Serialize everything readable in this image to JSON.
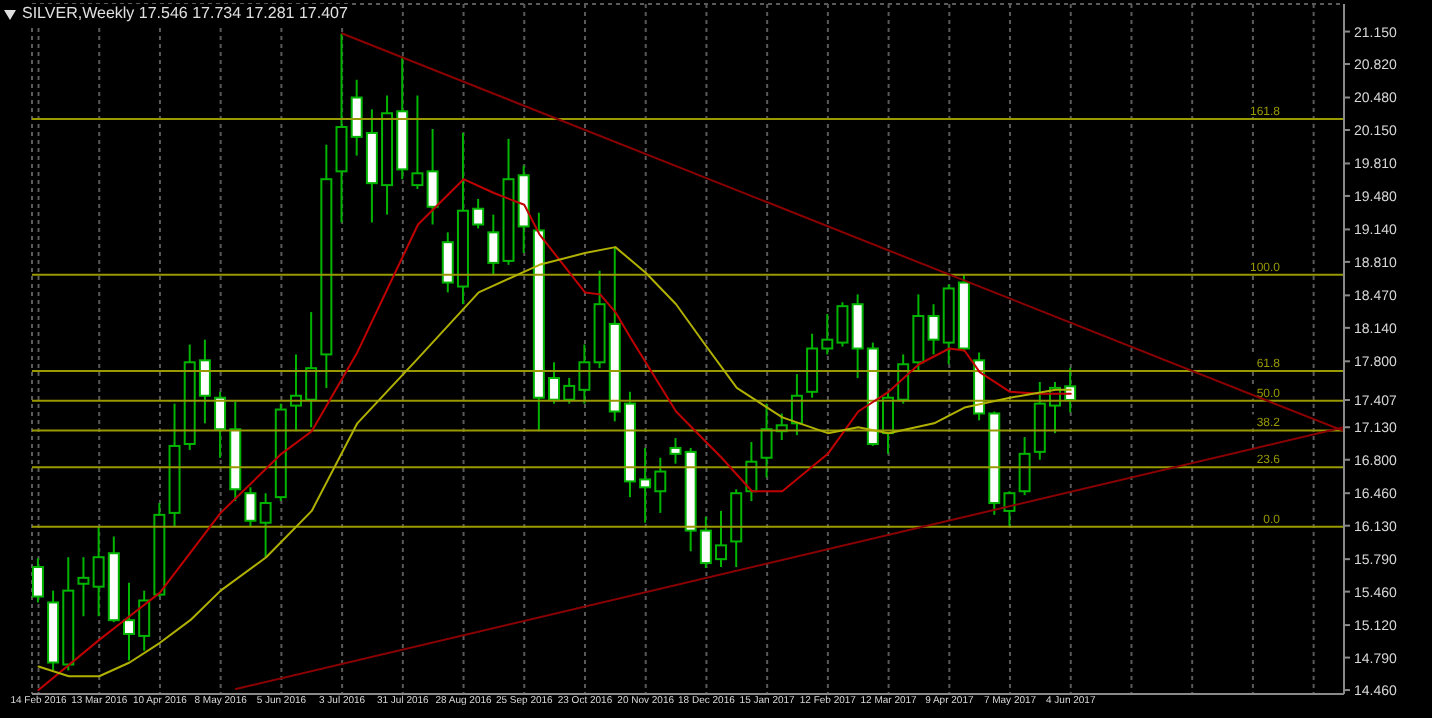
{
  "chart_data": {
    "type": "candlestick",
    "title": "SILVER,Weekly 17.546 17.734 17.281 17.407",
    "x": [
      "2016-02-14",
      "2016-02-21",
      "2016-02-28",
      "2016-03-06",
      "2016-03-13",
      "2016-03-20",
      "2016-03-27",
      "2016-04-03",
      "2016-04-10",
      "2016-04-17",
      "2016-04-24",
      "2016-05-01",
      "2016-05-08",
      "2016-05-15",
      "2016-05-22",
      "2016-05-29",
      "2016-06-05",
      "2016-06-12",
      "2016-06-19",
      "2016-06-26",
      "2016-07-03",
      "2016-07-10",
      "2016-07-17",
      "2016-07-24",
      "2016-07-31",
      "2016-08-07",
      "2016-08-14",
      "2016-08-21",
      "2016-08-28",
      "2016-09-04",
      "2016-09-11",
      "2016-09-18",
      "2016-09-25",
      "2016-10-02",
      "2016-10-09",
      "2016-10-16",
      "2016-10-23",
      "2016-10-30",
      "2016-11-06",
      "2016-11-13",
      "2016-11-20",
      "2016-11-27",
      "2016-12-04",
      "2016-12-11",
      "2016-12-18",
      "2016-12-25",
      "2017-01-01",
      "2017-01-08",
      "2017-01-15",
      "2017-01-22",
      "2017-01-29",
      "2017-02-05",
      "2017-02-12",
      "2017-02-19",
      "2017-02-26",
      "2017-03-05",
      "2017-03-12",
      "2017-03-19",
      "2017-03-26",
      "2017-04-02",
      "2017-04-09",
      "2017-04-16",
      "2017-04-23",
      "2017-04-30",
      "2017-05-07",
      "2017-05-14",
      "2017-05-21",
      "2017-05-28",
      "2017-06-04"
    ],
    "ohlc": [
      [
        15.71,
        15.8,
        15.35,
        15.41
      ],
      [
        15.35,
        15.47,
        14.66,
        14.74
      ],
      [
        14.72,
        15.81,
        14.66,
        15.47
      ],
      [
        15.54,
        15.81,
        15.21,
        15.6
      ],
      [
        15.51,
        16.12,
        15.21,
        15.81
      ],
      [
        15.85,
        16.02,
        15.15,
        15.17
      ],
      [
        15.17,
        15.55,
        14.76,
        15.03
      ],
      [
        15.01,
        15.47,
        14.86,
        15.37
      ],
      [
        15.43,
        16.36,
        15.41,
        16.24
      ],
      [
        16.26,
        17.37,
        16.12,
        16.94
      ],
      [
        16.96,
        17.97,
        16.9,
        17.79
      ],
      [
        17.81,
        18.02,
        17.17,
        17.45
      ],
      [
        17.43,
        17.49,
        16.82,
        17.11
      ],
      [
        17.11,
        17.39,
        16.38,
        16.5
      ],
      [
        16.46,
        16.52,
        16.12,
        16.18
      ],
      [
        16.16,
        16.46,
        15.81,
        16.36
      ],
      [
        16.42,
        17.37,
        16.38,
        17.31
      ],
      [
        17.35,
        17.87,
        17.09,
        17.45
      ],
      [
        17.41,
        18.3,
        17.13,
        17.73
      ],
      [
        17.87,
        20.0,
        17.53,
        19.65
      ],
      [
        19.73,
        21.13,
        19.21,
        20.18
      ],
      [
        20.48,
        20.66,
        19.89,
        20.08
      ],
      [
        20.12,
        20.36,
        19.21,
        19.61
      ],
      [
        19.59,
        20.5,
        19.29,
        20.32
      ],
      [
        20.34,
        20.9,
        19.65,
        19.75
      ],
      [
        19.59,
        20.5,
        19.55,
        19.71
      ],
      [
        19.73,
        20.16,
        19.19,
        19.37
      ],
      [
        19.01,
        19.11,
        18.5,
        18.6
      ],
      [
        18.56,
        20.12,
        18.38,
        19.33
      ],
      [
        19.35,
        19.45,
        19.15,
        19.19
      ],
      [
        19.11,
        19.29,
        18.68,
        18.8
      ],
      [
        18.82,
        20.06,
        18.78,
        19.65
      ],
      [
        19.69,
        19.79,
        18.9,
        19.17
      ],
      [
        19.13,
        19.31,
        17.09,
        17.43
      ],
      [
        17.63,
        17.79,
        17.37,
        17.41
      ],
      [
        17.41,
        17.63,
        17.37,
        17.55
      ],
      [
        17.51,
        17.97,
        17.37,
        17.79
      ],
      [
        17.79,
        18.72,
        17.73,
        18.38
      ],
      [
        18.18,
        18.96,
        17.19,
        17.29
      ],
      [
        17.37,
        17.49,
        16.42,
        16.58
      ],
      [
        16.6,
        16.92,
        16.16,
        16.52
      ],
      [
        16.48,
        16.82,
        16.26,
        16.68
      ],
      [
        16.92,
        17.02,
        16.76,
        16.86
      ],
      [
        16.88,
        16.92,
        15.87,
        16.08
      ],
      [
        16.08,
        16.22,
        15.7,
        15.75
      ],
      [
        15.79,
        16.28,
        15.71,
        15.93
      ],
      [
        15.97,
        16.5,
        15.71,
        16.46
      ],
      [
        16.48,
        16.98,
        16.38,
        16.78
      ],
      [
        16.82,
        17.37,
        16.62,
        17.11
      ],
      [
        17.09,
        17.27,
        17.0,
        17.15
      ],
      [
        17.17,
        17.67,
        17.05,
        17.45
      ],
      [
        17.49,
        18.08,
        17.43,
        17.93
      ],
      [
        17.93,
        18.28,
        17.87,
        18.02
      ],
      [
        17.99,
        18.4,
        17.95,
        18.36
      ],
      [
        18.38,
        18.48,
        17.63,
        17.93
      ],
      [
        17.93,
        17.99,
        16.94,
        16.96
      ],
      [
        17.07,
        17.49,
        16.86,
        17.43
      ],
      [
        17.41,
        17.87,
        17.37,
        17.77
      ],
      [
        17.79,
        18.48,
        17.7,
        18.26
      ],
      [
        18.26,
        18.38,
        17.87,
        18.02
      ],
      [
        17.99,
        18.58,
        17.77,
        18.54
      ],
      [
        18.6,
        18.68,
        17.9,
        17.93
      ],
      [
        17.81,
        17.89,
        17.2,
        17.27
      ],
      [
        17.27,
        17.29,
        16.24,
        16.36
      ],
      [
        16.28,
        16.48,
        16.12,
        16.46
      ],
      [
        16.48,
        17.03,
        16.44,
        16.86
      ],
      [
        16.88,
        17.59,
        16.8,
        17.37
      ],
      [
        17.35,
        17.59,
        17.07,
        17.53
      ],
      [
        17.546,
        17.734,
        17.281,
        17.407
      ]
    ],
    "series": [
      {
        "type": "line",
        "color": "#c00000",
        "x": [
          "2016-02-14",
          "2016-03-13",
          "2016-03-27",
          "2016-04-10",
          "2016-05-08",
          "2016-06-05",
          "2016-06-19",
          "2016-07-10",
          "2016-08-07",
          "2016-08-28",
          "2016-09-11",
          "2016-09-25",
          "2016-10-02",
          "2016-10-23",
          "2016-10-30",
          "2016-11-06",
          "2016-11-13",
          "2016-12-04",
          "2016-12-25",
          "2017-01-08",
          "2017-01-22",
          "2017-02-12",
          "2017-02-26",
          "2017-03-12",
          "2017-03-26",
          "2017-04-09",
          "2017-04-16",
          "2017-04-23",
          "2017-05-07",
          "2017-05-21",
          "2017-06-04"
        ],
        "values": [
          14.46,
          14.97,
          15.21,
          15.45,
          16.26,
          16.86,
          17.09,
          17.89,
          19.19,
          19.65,
          19.51,
          19.39,
          19.09,
          18.5,
          18.48,
          18.3,
          18.04,
          17.29,
          16.82,
          16.48,
          16.48,
          16.86,
          17.29,
          17.49,
          17.77,
          17.93,
          17.91,
          17.69,
          17.49,
          17.47,
          17.47
        ]
      },
      {
        "type": "line",
        "color": "#b0b000",
        "x": [
          "2016-02-14",
          "2016-02-28",
          "2016-03-13",
          "2016-03-27",
          "2016-04-10",
          "2016-04-24",
          "2016-05-08",
          "2016-05-29",
          "2016-06-19",
          "2016-07-10",
          "2016-08-07",
          "2016-09-04",
          "2016-10-02",
          "2016-10-23",
          "2016-11-06",
          "2016-11-20",
          "2016-12-04",
          "2016-12-18",
          "2017-01-01",
          "2017-01-22",
          "2017-02-12",
          "2017-02-26",
          "2017-03-12",
          "2017-04-02",
          "2017-04-16",
          "2017-05-07",
          "2017-05-28",
          "2017-06-04"
        ],
        "values": [
          14.7,
          14.6,
          14.6,
          14.74,
          14.94,
          15.17,
          15.47,
          15.81,
          16.28,
          17.17,
          17.83,
          18.5,
          18.78,
          18.9,
          18.96,
          18.7,
          18.38,
          17.95,
          17.53,
          17.23,
          17.07,
          17.13,
          17.07,
          17.17,
          17.33,
          17.43,
          17.51,
          17.51
        ]
      },
      {
        "type": "line",
        "color": "#8b0000",
        "x": [
          "2016-07-03",
          "2017-10-08"
        ],
        "values": [
          21.13,
          17.09
        ]
      },
      {
        "type": "line",
        "color": "#8b0000",
        "x": [
          "2016-05-15",
          "2017-10-08"
        ],
        "values": [
          14.47,
          17.13
        ]
      }
    ],
    "ref_lines": [
      {
        "axis": "y2",
        "value": 161.8,
        "label": "161.8",
        "color": "#999900"
      },
      {
        "axis": "y2",
        "value": 100.0,
        "label": "100.0",
        "color": "#999900"
      },
      {
        "axis": "y2",
        "value": 61.8,
        "label": "61.8",
        "color": "#999900"
      },
      {
        "axis": "y2",
        "value": 50.0,
        "label": "50.0",
        "color": "#999900"
      },
      {
        "axis": "y2",
        "value": 38.2,
        "label": "38.2",
        "color": "#999900"
      },
      {
        "axis": "y2",
        "value": 23.6,
        "label": "23.6",
        "color": "#999900"
      },
      {
        "axis": "y2",
        "value": 0.0,
        "label": "0.0",
        "color": "#999900"
      }
    ],
    "y2lim": [
      -66.4,
      207.4
    ],
    "xlim": [
      "2016-02-11",
      "2017-10-08"
    ],
    "xticks": [
      {
        "value": "2016-02-14",
        "label": "14 Feb 2016"
      },
      {
        "value": "2016-03-13",
        "label": "13 Mar 2016"
      },
      {
        "value": "2016-04-10",
        "label": "10 Apr 2016"
      },
      {
        "value": "2016-05-08",
        "label": "8 May 2016"
      },
      {
        "value": "2016-06-05",
        "label": "5 Jun 2016"
      },
      {
        "value": "2016-07-03",
        "label": "3 Jul 2016"
      },
      {
        "value": "2016-07-31",
        "label": "31 Jul 2016"
      },
      {
        "value": "2016-08-28",
        "label": "28 Aug 2016"
      },
      {
        "value": "2016-09-25",
        "label": "25 Sep 2016"
      },
      {
        "value": "2016-10-23",
        "label": "23 Oct 2016"
      },
      {
        "value": "2016-11-20",
        "label": "20 Nov 2016"
      },
      {
        "value": "2016-12-18",
        "label": "18 Dec 2016"
      },
      {
        "value": "2017-01-15",
        "label": "15 Jan 2017"
      },
      {
        "value": "2017-02-12",
        "label": "12 Feb 2017"
      },
      {
        "value": "2017-03-12",
        "label": "12 Mar 2017"
      },
      {
        "value": "2017-04-09",
        "label": "9 Apr 2017"
      },
      {
        "value": "2017-05-07",
        "label": "7 May 2017"
      },
      {
        "value": "2017-06-04",
        "label": "4 Jun 2017"
      },
      {
        "value": "2017-07-02",
        "label": null
      },
      {
        "value": "2017-07-30",
        "label": null
      },
      {
        "value": "2017-08-27",
        "label": null
      },
      {
        "value": "2017-09-24",
        "label": null
      }
    ],
    "ylim": [
      14.42,
      21.43
    ],
    "yticks": [
      {
        "value": 14.46,
        "label": "14.460"
      },
      {
        "value": 14.79,
        "label": "14.790"
      },
      {
        "value": 15.12,
        "label": "15.120"
      },
      {
        "value": 15.46,
        "label": "15.460"
      },
      {
        "value": 15.79,
        "label": "15.790"
      },
      {
        "value": 16.13,
        "label": "16.130"
      },
      {
        "value": 16.46,
        "label": "16.460"
      },
      {
        "value": 16.8,
        "label": "16.800"
      },
      {
        "value": 17.13,
        "label": "17.130"
      },
      {
        "value": 17.407,
        "label": "17.407"
      },
      {
        "value": 17.8,
        "label": "17.800"
      },
      {
        "value": 18.14,
        "label": "18.140"
      },
      {
        "value": 18.47,
        "label": "18.470"
      },
      {
        "value": 18.81,
        "label": "18.810"
      },
      {
        "value": 19.14,
        "label": "19.140"
      },
      {
        "value": 19.48,
        "label": "19.480"
      },
      {
        "value": 19.81,
        "label": "19.810"
      },
      {
        "value": 20.15,
        "label": "20.150"
      },
      {
        "value": 20.48,
        "label": "20.480"
      },
      {
        "value": 20.82,
        "label": "20.820"
      },
      {
        "value": 21.15,
        "label": "21.150"
      }
    ],
    "grid": true
  }
}
